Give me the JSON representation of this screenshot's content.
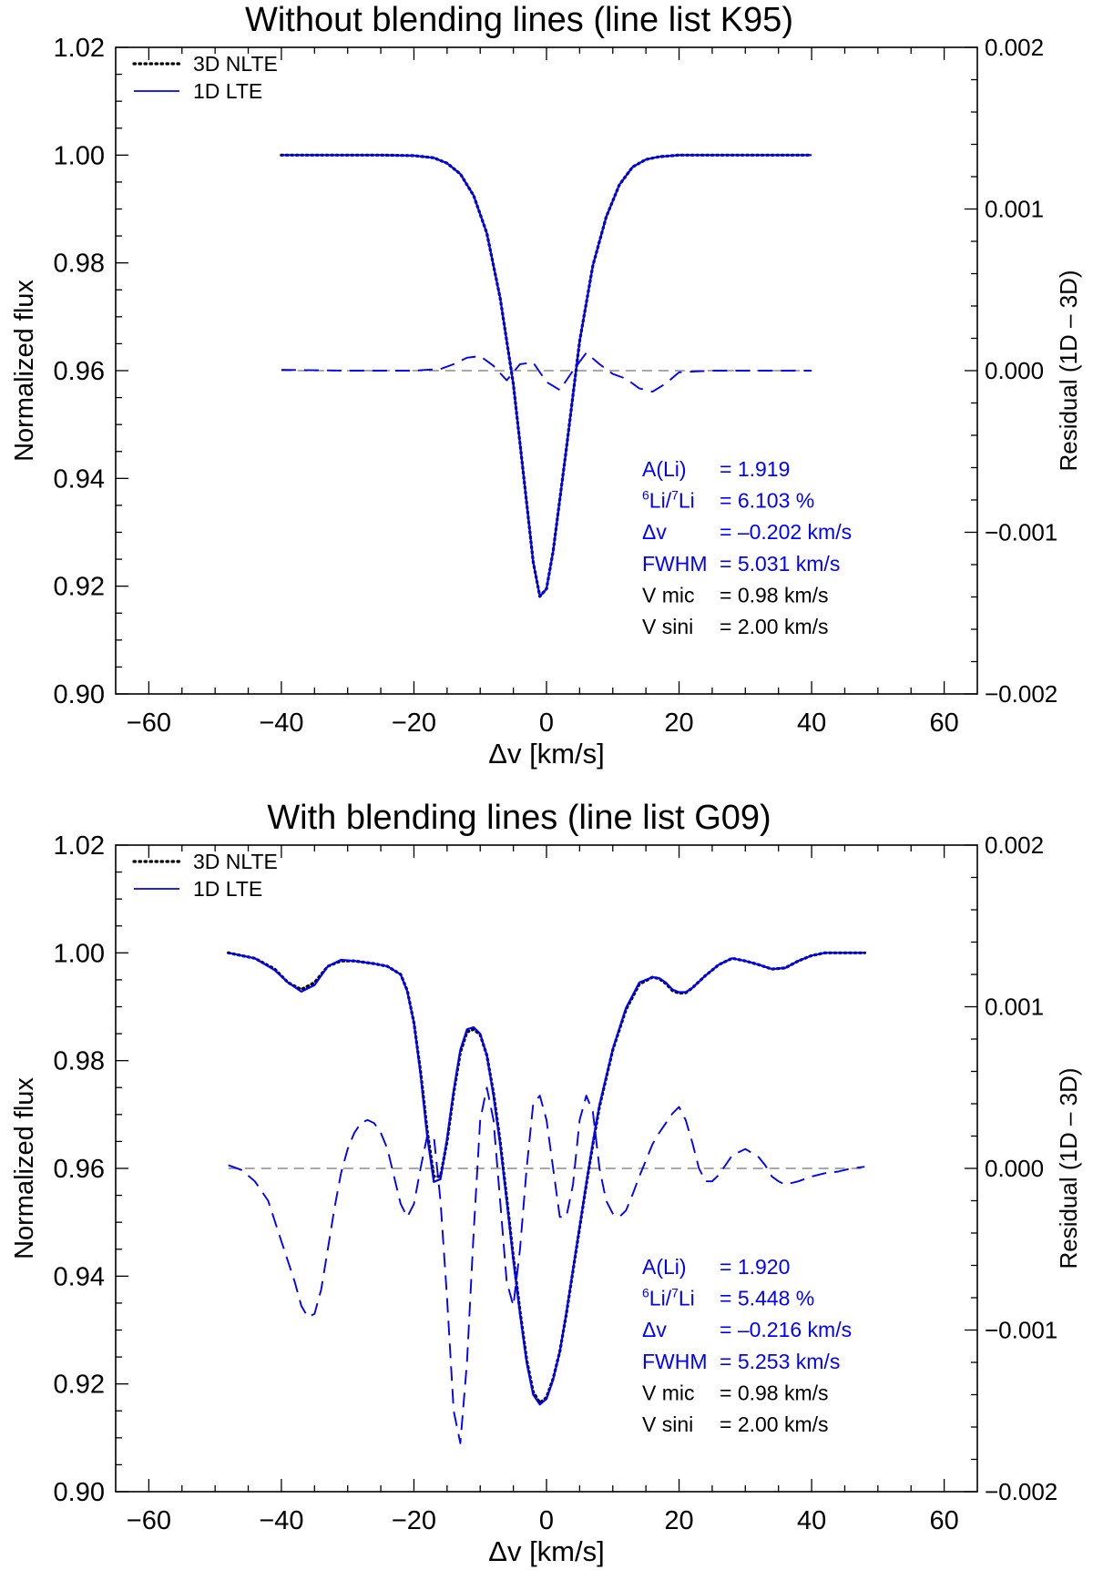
{
  "chart_data": [
    {
      "type": "line",
      "title": "Without blending lines (line list K95)",
      "xlabel": "Δv [km/s]",
      "ylabel": "Normalized flux",
      "y2label": "Residual (1D – 3D)",
      "xlim": [
        -65,
        65
      ],
      "ylim": [
        0.9,
        1.02
      ],
      "y2lim": [
        -0.002,
        0.002
      ],
      "xticks": [
        -60,
        -40,
        -20,
        0,
        20,
        40,
        60
      ],
      "xticklabels": [
        "−60",
        "−40",
        "−20",
        "0",
        "20",
        "40",
        "60"
      ],
      "yticks": [
        0.9,
        0.92,
        0.94,
        0.96,
        0.98,
        1.0,
        1.02
      ],
      "yticklabels": [
        "0.90",
        "0.92",
        "0.94",
        "0.96",
        "0.98",
        "1.00",
        "1.02"
      ],
      "y2ticks": [
        -0.002,
        -0.001,
        0.0,
        0.001,
        0.002
      ],
      "y2ticklabels": [
        "−0.002",
        "−0.001",
        "0.000",
        "0.001",
        "0.002"
      ],
      "legend": [
        {
          "label": "3D NLTE",
          "color": "#000000",
          "style": "dotted"
        },
        {
          "label": "1D LTE",
          "color": "#0000ff",
          "style": "solid"
        }
      ],
      "annotations": [
        {
          "label": "A(Li)",
          "value": "= 1.919",
          "color": "#0000ff"
        },
        {
          "sup": "6",
          "label_a": "Li/",
          "sup2": "7",
          "label_b": "Li",
          "value": "= 6.103 %",
          "color": "#0000ff"
        },
        {
          "label": "Δv",
          "value": "= –0.202 km/s",
          "color": "#0000ff"
        },
        {
          "label": "FWHM",
          "value": "= 5.031 km/s",
          "color": "#0000ff"
        },
        {
          "label": "V mic",
          "value": "= 0.98 km/s",
          "color": "#000000"
        },
        {
          "label": "V sini",
          "value": "= 2.00 km/s",
          "color": "#000000"
        }
      ],
      "series": [
        {
          "name": "3D NLTE",
          "color": "#000000",
          "x": [
            -40,
            -35,
            -30,
            -25,
            -20,
            -17,
            -15,
            -13,
            -11,
            -9,
            -7,
            -5,
            -3,
            -2,
            -1,
            0,
            1,
            3,
            5,
            7,
            9,
            11,
            13,
            15,
            17,
            20,
            25,
            30,
            35,
            40
          ],
          "y": [
            1.0,
            1.0,
            1.0,
            1.0,
            0.9999,
            0.9995,
            0.9985,
            0.9965,
            0.9925,
            0.9855,
            0.9735,
            0.9575,
            0.9355,
            0.9245,
            0.9181,
            0.9195,
            0.9265,
            0.9455,
            0.9655,
            0.9795,
            0.9885,
            0.9945,
            0.9978,
            0.9992,
            0.9997,
            1.0,
            1.0,
            1.0,
            1.0,
            1.0
          ]
        },
        {
          "name": "1D LTE",
          "color": "#0000ff",
          "x": [
            -40,
            -35,
            -30,
            -25,
            -20,
            -17,
            -15,
            -13,
            -11,
            -9,
            -7,
            -5,
            -3,
            -2,
            -1,
            0,
            1,
            3,
            5,
            7,
            9,
            11,
            13,
            15,
            17,
            20,
            25,
            30,
            35,
            40
          ],
          "y": [
            1.0,
            1.0,
            1.0,
            1.0,
            0.9999,
            0.9995,
            0.9985,
            0.9965,
            0.9925,
            0.9855,
            0.9735,
            0.9575,
            0.9355,
            0.9245,
            0.9181,
            0.9195,
            0.9265,
            0.9455,
            0.9655,
            0.9795,
            0.9885,
            0.9945,
            0.9978,
            0.9992,
            0.9997,
            1.0,
            1.0,
            1.0,
            1.0,
            1.0
          ]
        },
        {
          "name": "Residual (1D – 3D)",
          "color": "#0000ff",
          "axis": "y2",
          "x": [
            -40,
            -30,
            -20,
            -16,
            -14,
            -12,
            -10,
            -8,
            -6,
            -4,
            -2,
            0,
            2,
            4,
            6,
            8,
            10,
            12,
            14,
            16,
            18,
            20,
            25,
            30,
            35,
            40
          ],
          "y": [
            5e-06,
            0.0,
            0.0,
            1e-05,
            4e-05,
            8e-05,
            9e-05,
            3e-05,
            -6e-05,
            4e-05,
            5e-05,
            -7e-05,
            -0.00012,
            0.0,
            0.00011,
            4e-05,
            -2e-05,
            -5e-05,
            -0.00011,
            -0.00013,
            -8e-05,
            -1e-05,
            0.0,
            0.0,
            0.0,
            0.0
          ]
        }
      ]
    },
    {
      "type": "line",
      "title": "With blending lines (line list G09)",
      "xlabel": "Δv [km/s]",
      "ylabel": "Normalized flux",
      "y2label": "Residual (1D – 3D)",
      "xlim": [
        -65,
        65
      ],
      "ylim": [
        0.9,
        1.02
      ],
      "y2lim": [
        -0.002,
        0.002
      ],
      "xticks": [
        -60,
        -40,
        -20,
        0,
        20,
        40,
        60
      ],
      "xticklabels": [
        "−60",
        "−40",
        "−20",
        "0",
        "20",
        "40",
        "60"
      ],
      "yticks": [
        0.9,
        0.92,
        0.94,
        0.96,
        0.98,
        1.0,
        1.02
      ],
      "yticklabels": [
        "0.90",
        "0.92",
        "0.94",
        "0.96",
        "0.98",
        "1.00",
        "1.02"
      ],
      "y2ticks": [
        -0.002,
        -0.001,
        0.0,
        0.001,
        0.002
      ],
      "y2ticklabels": [
        "−0.002",
        "−0.001",
        "0.000",
        "0.001",
        "0.002"
      ],
      "legend": [
        {
          "label": "3D NLTE",
          "color": "#000000",
          "style": "dotted"
        },
        {
          "label": "1D LTE",
          "color": "#0000ff",
          "style": "solid"
        }
      ],
      "annotations": [
        {
          "label": "A(Li)",
          "value": "= 1.920",
          "color": "#0000ff"
        },
        {
          "sup": "6",
          "label_a": "Li/",
          "sup2": "7",
          "label_b": "Li",
          "value": "= 5.448 %",
          "color": "#0000ff"
        },
        {
          "label": "Δv",
          "value": "= –0.216 km/s",
          "color": "#0000ff"
        },
        {
          "label": "FWHM",
          "value": "= 5.253 km/s",
          "color": "#0000ff"
        },
        {
          "label": "V mic",
          "value": "= 0.98 km/s",
          "color": "#000000"
        },
        {
          "label": "V sini",
          "value": "= 2.00 km/s",
          "color": "#000000"
        }
      ],
      "series": [
        {
          "name": "3D NLTE",
          "color": "#000000",
          "x": [
            -48,
            -44,
            -41,
            -39,
            -37,
            -35,
            -33,
            -31,
            -29,
            -26,
            -24,
            -22,
            -21,
            -20,
            -19,
            -18,
            -17,
            -16,
            -15,
            -14,
            -13,
            -12,
            -11,
            -10,
            -9,
            -8,
            -7,
            -6,
            -5,
            -4,
            -3,
            -2,
            -1,
            0,
            1,
            2,
            3,
            4,
            5,
            6,
            7,
            8,
            10,
            12,
            14,
            16,
            17,
            18,
            19,
            20,
            21,
            22,
            24,
            26,
            28,
            30,
            32,
            34,
            36,
            38,
            40,
            42,
            44,
            46,
            48
          ],
          "y": [
            1.0,
            0.999,
            0.997,
            0.9945,
            0.9932,
            0.9945,
            0.9975,
            0.9985,
            0.9985,
            0.998,
            0.9975,
            0.996,
            0.993,
            0.987,
            0.978,
            0.967,
            0.9585,
            0.9585,
            0.965,
            0.974,
            0.9815,
            0.9853,
            0.9858,
            0.9848,
            0.981,
            0.974,
            0.965,
            0.9545,
            0.9435,
            0.9335,
            0.9245,
            0.9185,
            0.9165,
            0.9175,
            0.921,
            0.926,
            0.933,
            0.941,
            0.949,
            0.957,
            0.9645,
            0.9715,
            0.982,
            0.9895,
            0.9942,
            0.9955,
            0.9952,
            0.9943,
            0.993,
            0.9925,
            0.9926,
            0.9935,
            0.9958,
            0.9978,
            0.999,
            0.9985,
            0.9978,
            0.997,
            0.9972,
            0.9985,
            0.9995,
            1.0,
            1.0,
            1.0,
            1.0
          ]
        },
        {
          "name": "1D LTE",
          "color": "#0000ff",
          "x": [
            -48,
            -44,
            -41,
            -39,
            -37,
            -35,
            -33,
            -31,
            -29,
            -26,
            -24,
            -22,
            -21,
            -20,
            -19,
            -18,
            -17,
            -16,
            -15,
            -14,
            -13,
            -12,
            -11,
            -10,
            -9,
            -8,
            -7,
            -6,
            -5,
            -4,
            -3,
            -2,
            -1,
            0,
            1,
            2,
            3,
            4,
            5,
            6,
            7,
            8,
            10,
            12,
            14,
            16,
            17,
            18,
            19,
            20,
            21,
            22,
            24,
            26,
            28,
            30,
            32,
            34,
            36,
            38,
            40,
            42,
            44,
            46,
            48
          ],
          "y": [
            1.0,
            0.999,
            0.9968,
            0.9945,
            0.9928,
            0.994,
            0.9975,
            0.9987,
            0.9985,
            0.998,
            0.9975,
            0.996,
            0.9928,
            0.987,
            0.9775,
            0.966,
            0.9575,
            0.958,
            0.9655,
            0.9745,
            0.982,
            0.9858,
            0.9862,
            0.985,
            0.981,
            0.9735,
            0.9645,
            0.954,
            0.943,
            0.933,
            0.924,
            0.918,
            0.9162,
            0.9172,
            0.9208,
            0.926,
            0.9332,
            0.9412,
            0.9492,
            0.9572,
            0.9648,
            0.9718,
            0.9822,
            0.9898,
            0.9945,
            0.9955,
            0.9953,
            0.9945,
            0.9932,
            0.9927,
            0.9927,
            0.9935,
            0.9958,
            0.9978,
            0.999,
            0.9985,
            0.9978,
            0.997,
            0.9972,
            0.9985,
            0.9995,
            1.0,
            1.0,
            1.0,
            1.0
          ]
        },
        {
          "name": "Residual (1D – 3D)",
          "color": "#0000ff",
          "axis": "y2",
          "x": [
            -48,
            -46,
            -44,
            -42,
            -40,
            -38,
            -37,
            -36,
            -35,
            -34,
            -33,
            -32,
            -31,
            -30,
            -29,
            -28,
            -27,
            -26,
            -25,
            -24,
            -23,
            -22,
            -21,
            -20,
            -19,
            -18,
            -17,
            -16,
            -15,
            -14,
            -13,
            -12,
            -11,
            -10,
            -9,
            -8,
            -7,
            -6,
            -5,
            -4,
            -3,
            -2,
            -1,
            0,
            1,
            2,
            3,
            4,
            5,
            6,
            7,
            8,
            9,
            10,
            11,
            12,
            13,
            14,
            15,
            16,
            17,
            18,
            19,
            20,
            21,
            22,
            23,
            24,
            25,
            26,
            28,
            30,
            32,
            33,
            34,
            35,
            36,
            38,
            40,
            42,
            44,
            46,
            48
          ],
          "y": [
            2e-05,
            -1e-05,
            -8e-05,
            -0.0002,
            -0.00045,
            -0.0007,
            -0.00085,
            -0.00092,
            -0.0009,
            -0.00075,
            -0.0005,
            -0.00025,
            -3e-05,
            0.00012,
            0.00022,
            0.00028,
            0.0003,
            0.00028,
            0.00022,
            0.00012,
            -5e-05,
            -0.00022,
            -0.0003,
            -0.00022,
            0.0,
            0.0002,
            0.0002,
            -0.0002,
            -0.0008,
            -0.0015,
            -0.0017,
            -0.0012,
            -0.0004,
            0.0003,
            0.0005,
            0.0003,
            -0.0002,
            -0.0007,
            -0.00085,
            -0.0005,
            0.0,
            0.0004,
            0.00045,
            0.0003,
            0.0,
            -0.0003,
            -0.0003,
            -0.0001,
            0.0003,
            0.00045,
            0.00035,
            0.0,
            -0.0002,
            -0.00028,
            -0.0003,
            -0.00026,
            -0.00016,
            -5e-05,
            5e-05,
            0.00015,
            0.00022,
            0.00028,
            0.00034,
            0.00038,
            0.0003,
            0.00016,
            0.0,
            -8e-05,
            -8e-05,
            -4e-05,
            8e-05,
            0.00012,
            7e-05,
            2e-05,
            -5e-05,
            -8e-05,
            -0.0001,
            -8e-05,
            -5e-05,
            -3e-05,
            -2e-05,
            0.0,
            1e-05
          ]
        }
      ]
    }
  ]
}
